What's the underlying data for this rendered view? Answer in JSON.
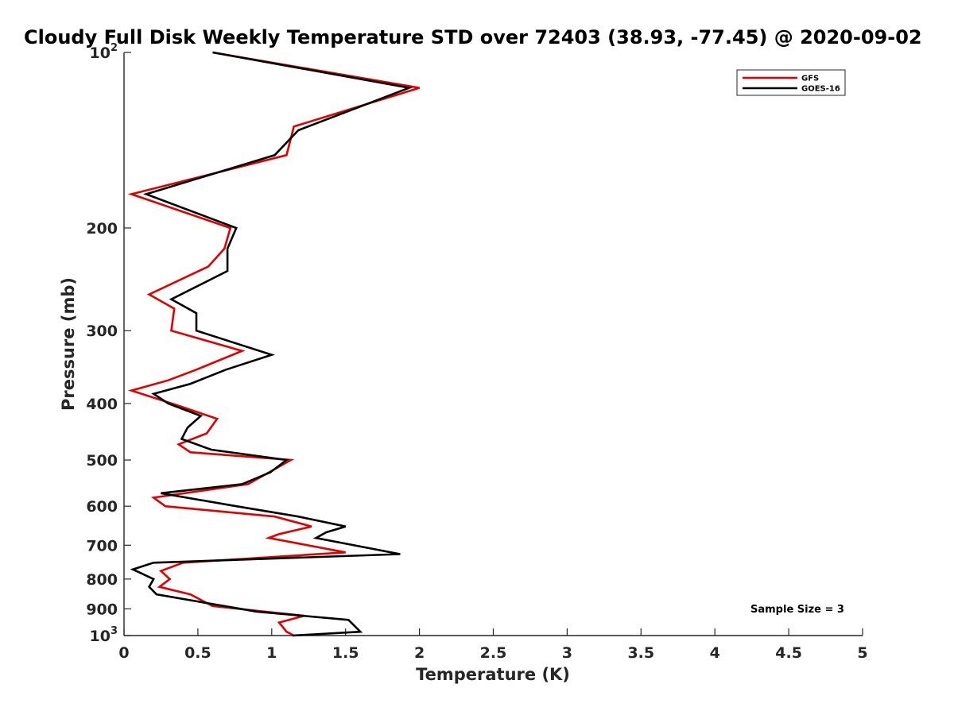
{
  "chart_data": {
    "type": "line",
    "title": "Cloudy Full Disk Weekly Temperature STD over 72403 (38.93, -77.45) @ 2020-09-02",
    "xlabel": "Temperature (K)",
    "ylabel": "Pressure (mb)",
    "xlim": [
      0,
      5
    ],
    "ylim": [
      100,
      1000
    ],
    "y_scale": "log",
    "y_reversed": true,
    "xticks": [
      0,
      0.5,
      1,
      1.5,
      2,
      2.5,
      3,
      3.5,
      4,
      4.5,
      5
    ],
    "xtick_labels": [
      "0",
      "0.5",
      "1",
      "1.5",
      "2",
      "2.5",
      "3",
      "3.5",
      "4",
      "4.5",
      "5"
    ],
    "yticks": [
      {
        "value": 100,
        "base": "10",
        "exp": "2"
      },
      {
        "value": 200,
        "label": "200"
      },
      {
        "value": 300,
        "label": "300"
      },
      {
        "value": 400,
        "label": "400"
      },
      {
        "value": 500,
        "label": "500"
      },
      {
        "value": 600,
        "label": "600"
      },
      {
        "value": 700,
        "label": "700"
      },
      {
        "value": 800,
        "label": "800"
      },
      {
        "value": 900,
        "label": "900"
      },
      {
        "value": 1000,
        "base": "10",
        "exp": "3"
      }
    ],
    "grid": false,
    "legend_position": "top-right",
    "series": [
      {
        "name": "GFS",
        "color": "#e00000",
        "points": [
          [
            0.6,
            100
          ],
          [
            2.0,
            115
          ],
          [
            1.15,
            134
          ],
          [
            1.1,
            150
          ],
          [
            0.05,
            175
          ],
          [
            0.72,
            200
          ],
          [
            0.68,
            217
          ],
          [
            0.57,
            233
          ],
          [
            0.17,
            260
          ],
          [
            0.34,
            275
          ],
          [
            0.32,
            300
          ],
          [
            0.8,
            325
          ],
          [
            0.49,
            350
          ],
          [
            0.3,
            365
          ],
          [
            0.05,
            380
          ],
          [
            0.35,
            402
          ],
          [
            0.63,
            425
          ],
          [
            0.56,
            450
          ],
          [
            0.37,
            470
          ],
          [
            0.45,
            485
          ],
          [
            1.13,
            500
          ],
          [
            0.84,
            550
          ],
          [
            0.2,
            580
          ],
          [
            0.28,
            600
          ],
          [
            1.02,
            625
          ],
          [
            1.27,
            650
          ],
          [
            1.05,
            670
          ],
          [
            0.98,
            680
          ],
          [
            1.5,
            720
          ],
          [
            0.4,
            750
          ],
          [
            0.25,
            775
          ],
          [
            0.31,
            800
          ],
          [
            0.24,
            825
          ],
          [
            0.45,
            850
          ],
          [
            0.6,
            890
          ],
          [
            1.22,
            925
          ],
          [
            1.05,
            950
          ],
          [
            1.1,
            985
          ],
          [
            1.15,
            1000
          ]
        ]
      },
      {
        "name": "GOES-16",
        "color": "#000000",
        "points": [
          [
            0.6,
            100
          ],
          [
            1.93,
            115
          ],
          [
            1.18,
            136
          ],
          [
            1.02,
            150
          ],
          [
            0.15,
            175
          ],
          [
            0.76,
            200
          ],
          [
            0.7,
            217
          ],
          [
            0.7,
            237
          ],
          [
            0.32,
            265
          ],
          [
            0.49,
            280
          ],
          [
            0.49,
            300
          ],
          [
            1.0,
            330
          ],
          [
            0.69,
            350
          ],
          [
            0.45,
            370
          ],
          [
            0.2,
            385
          ],
          [
            0.3,
            400
          ],
          [
            0.52,
            420
          ],
          [
            0.43,
            440
          ],
          [
            0.39,
            460
          ],
          [
            0.59,
            480
          ],
          [
            1.1,
            500
          ],
          [
            0.99,
            525
          ],
          [
            0.8,
            550
          ],
          [
            0.25,
            570
          ],
          [
            0.76,
            600
          ],
          [
            1.18,
            625
          ],
          [
            1.5,
            650
          ],
          [
            1.37,
            665
          ],
          [
            1.3,
            680
          ],
          [
            1.87,
            725
          ],
          [
            0.2,
            750
          ],
          [
            0.06,
            770
          ],
          [
            0.2,
            800
          ],
          [
            0.17,
            825
          ],
          [
            0.22,
            850
          ],
          [
            0.9,
            910
          ],
          [
            1.52,
            940
          ],
          [
            1.6,
            985
          ],
          [
            1.14,
            1000
          ]
        ]
      }
    ],
    "annotations": [
      {
        "text": "Sample Size = 3",
        "position": "bottom-right"
      }
    ]
  }
}
